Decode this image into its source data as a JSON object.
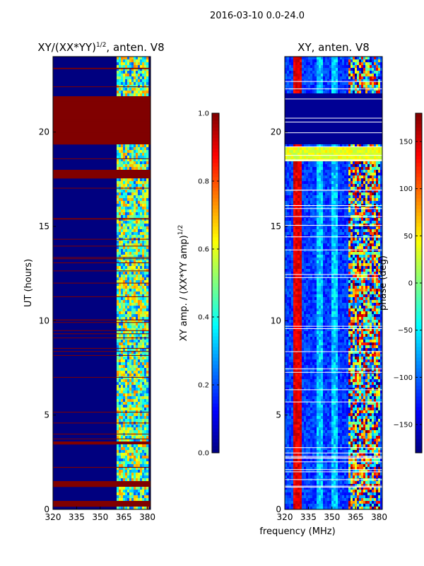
{
  "suptitle": "2016-03-10 0.0-24.0",
  "xlabel": "frequency (MHz)",
  "colors": {
    "lo": "#00007f",
    "hi": "#7f0000"
  },
  "chart_data": [
    {
      "type": "heatmap",
      "title": "XY/(XX*YY)",
      "title_sup": "1/2",
      "title_suffix": ", anten. V8",
      "xlabel": "",
      "ylabel": "UT (hours)",
      "xlim": [
        320,
        382
      ],
      "ylim": [
        0,
        24
      ],
      "xticks": [
        320,
        335,
        350,
        365,
        380
      ],
      "yticks": [
        0,
        5,
        10,
        15,
        20
      ],
      "colorbar": {
        "label": "XY amp. / (XX*YY amp)",
        "label_sup": "1/2",
        "range": [
          0.0,
          1.0
        ],
        "ticks": [
          "0.0",
          "0.2",
          "0.4",
          "0.6",
          "0.8",
          "1.0"
        ],
        "tick_values": [
          0.0,
          0.2,
          0.4,
          0.6,
          0.8,
          1.0
        ]
      },
      "saturated_bands_hours": [
        [
          0.1,
          0.45
        ],
        [
          1.2,
          1.55
        ],
        [
          3.4,
          3.65
        ],
        [
          17.5,
          18.0
        ],
        [
          19.3,
          21.95
        ]
      ],
      "active_freq_range_mhz": [
        360,
        380
      ],
      "dominant_value": 0.1
    },
    {
      "type": "heatmap",
      "title": "XY, anten. V8",
      "xlabel": "frequency (MHz)",
      "ylabel": "",
      "xlim": [
        320,
        382
      ],
      "ylim": [
        0,
        24
      ],
      "xticks": [
        320,
        335,
        350,
        365,
        380
      ],
      "yticks": [
        0,
        5,
        10,
        15,
        20
      ],
      "colorbar": {
        "label": "phase (deg)",
        "range": [
          -180,
          180
        ],
        "ticks": [
          "−150",
          "−100",
          "−50",
          "0",
          "50",
          "100",
          "150"
        ],
        "tick_values": [
          -150,
          -100,
          -50,
          0,
          50,
          100,
          150
        ]
      },
      "flat_band_hours": [
        19.3,
        22.0
      ],
      "flat_band_value": -180,
      "green_band_hours": [
        18.5,
        19.2
      ],
      "active_freq_range_mhz": [
        360,
        380
      ]
    }
  ]
}
